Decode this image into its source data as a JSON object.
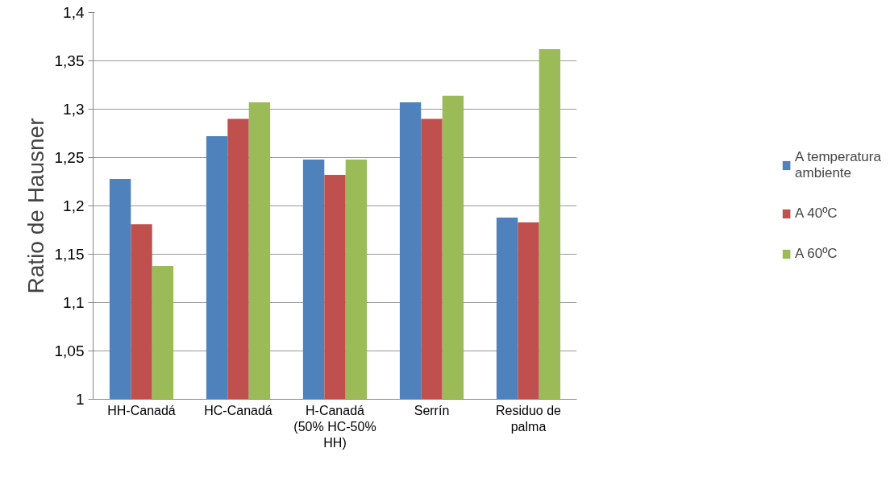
{
  "chart_data": {
    "type": "bar",
    "ylabel": "Ratio de Hausner",
    "categories": [
      "HH-Canadá",
      "HC-Canadá",
      "H-Canadá\n(50% HC-50%\nHH)",
      "Serrín",
      "Residuo de\npalma"
    ],
    "series": [
      {
        "name": "A temperatura\nambiente",
        "color": "#4f81bd",
        "values": [
          1.228,
          1.272,
          1.248,
          1.307,
          1.188
        ]
      },
      {
        "name": "A 40ºC",
        "color": "#c0504d",
        "values": [
          1.181,
          1.29,
          1.232,
          1.29,
          1.183
        ]
      },
      {
        "name": "A 60ºC",
        "color": "#9bbb59",
        "values": [
          1.138,
          1.307,
          1.248,
          1.314,
          1.362
        ]
      }
    ],
    "ylim": [
      1,
      1.4
    ],
    "yticks": [
      {
        "value": 1,
        "label": "1"
      },
      {
        "value": 1.05,
        "label": "1,05"
      },
      {
        "value": 1.1,
        "label": "1,1"
      },
      {
        "value": 1.15,
        "label": "1,15"
      },
      {
        "value": 1.2,
        "label": "1,2"
      },
      {
        "value": 1.25,
        "label": "1,25"
      },
      {
        "value": 1.3,
        "label": "1,3"
      },
      {
        "value": 1.35,
        "label": "1,35"
      },
      {
        "value": 1.4,
        "label": "1,4"
      }
    ],
    "grid": "y",
    "legend": "right"
  }
}
